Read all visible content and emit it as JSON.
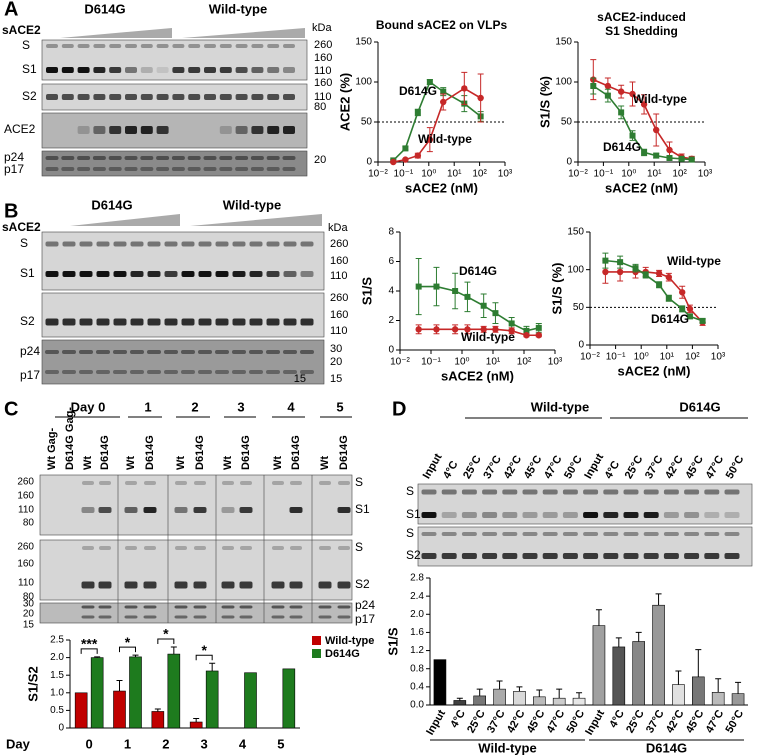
{
  "panel_labels": [
    "A",
    "B",
    "C",
    "D"
  ],
  "blot_A": {
    "groups": [
      "D614G",
      "Wild-type"
    ],
    "treatment": "sACE2",
    "bands": [
      "S",
      "S1",
      "S2",
      "ACE2",
      "p24",
      "p17"
    ],
    "kda_title": "kDa",
    "markers": [
      260,
      160,
      110,
      160,
      110,
      80,
      20
    ]
  },
  "blot_B": {
    "groups": [
      "D614G",
      "Wild-type"
    ],
    "treatment": "sACE2",
    "bands": [
      "S",
      "S1",
      "S2",
      "p24",
      "p17"
    ],
    "kda_title": "kDa",
    "markers": [
      260,
      160,
      110,
      260,
      160,
      110,
      30,
      20,
      15,
      15
    ]
  },
  "blot_C": {
    "days": [
      "Day 0",
      "1",
      "2",
      "3",
      "4",
      "5"
    ],
    "lanes": [
      "Wt Gag-",
      "D614G Gag-",
      "Wt",
      "D614G",
      "Wt",
      "D614G",
      "Wt",
      "D614G",
      "Wt",
      "D614G",
      "Wt",
      "D614G",
      "Wt",
      "D614G"
    ],
    "markers": [
      260,
      160,
      110,
      80,
      260,
      160,
      110,
      80,
      30,
      20,
      15
    ],
    "bands": [
      "S",
      "S1",
      "S",
      "S2",
      "p24",
      "p17"
    ]
  },
  "blot_D": {
    "groups": [
      "Wild-type",
      "D614G"
    ],
    "bands": [
      "S",
      "S1",
      "S",
      "S2"
    ]
  },
  "chart_data": [
    {
      "type": "line",
      "title": "Bound sACE2 on VLPs",
      "x_label": "sACE2 (nM)",
      "y_label": "ACE2 (%)",
      "xlim": [
        0.01,
        1000
      ],
      "xticks": [
        {
          "value": 0.01,
          "label": "10⁻²"
        },
        {
          "value": 0.1,
          "label": "10⁻¹"
        },
        {
          "value": 1,
          "label": "10⁰"
        },
        {
          "value": 10,
          "label": "10¹"
        },
        {
          "value": 100,
          "label": "10²"
        },
        {
          "value": 1000,
          "label": "10³"
        }
      ],
      "ylim": [
        0,
        150
      ],
      "yticks": [
        0,
        50,
        100,
        150
      ],
      "hline": 50,
      "series": [
        {
          "name": "D614G",
          "color": "#2e7d32",
          "marker": "square",
          "x": [
            0.04,
            0.12,
            0.37,
            1.1,
            3.7,
            25,
            110
          ],
          "values": [
            2,
            17,
            62,
            100,
            88,
            73,
            57
          ],
          "errors": [
            1,
            2,
            4,
            3,
            5,
            10,
            6
          ]
        },
        {
          "name": "Wild-type",
          "color": "#c62828",
          "marker": "circle",
          "x": [
            0.04,
            0.12,
            0.37,
            1.1,
            3.7,
            25,
            110
          ],
          "values": [
            0,
            3,
            8,
            28,
            75,
            92,
            80
          ],
          "errors": [
            1,
            1,
            3,
            15,
            10,
            20,
            30
          ]
        }
      ]
    },
    {
      "type": "line",
      "title": [
        "sACE2-induced",
        "S1 Shedding"
      ],
      "x_label": "sACE2 (nM)",
      "y_label": "S1/S (%)",
      "xlim": [
        0.01,
        1000
      ],
      "xticks": [
        {
          "value": 0.01,
          "label": "10⁻²"
        },
        {
          "value": 0.1,
          "label": "10⁻¹"
        },
        {
          "value": 1,
          "label": "10⁰"
        },
        {
          "value": 10,
          "label": "10¹"
        },
        {
          "value": 100,
          "label": "10²"
        },
        {
          "value": 1000,
          "label": "10³"
        }
      ],
      "ylim": [
        0,
        150
      ],
      "yticks": [
        0,
        50,
        100,
        150
      ],
      "hline": 50,
      "series": [
        {
          "name": "Wild-type",
          "color": "#c62828",
          "marker": "circle",
          "x": [
            0.04,
            0.15,
            0.5,
            1.4,
            4,
            12,
            40,
            120,
            300
          ],
          "values": [
            103,
            95,
            88,
            85,
            72,
            40,
            15,
            6,
            4
          ],
          "errors": [
            25,
            10,
            8,
            15,
            12,
            20,
            10,
            4,
            3
          ]
        },
        {
          "name": "D614G",
          "color": "#2e7d32",
          "marker": "square",
          "x": [
            0.04,
            0.15,
            0.5,
            1.4,
            4,
            12,
            40,
            120,
            300
          ],
          "values": [
            95,
            83,
            62,
            33,
            12,
            8,
            5,
            4,
            3
          ],
          "errors": [
            10,
            8,
            8,
            6,
            4,
            3,
            2,
            2,
            2
          ]
        }
      ]
    },
    {
      "type": "line",
      "x_label": "sACE2 (nM)",
      "y_label": "S1/S",
      "xlim": [
        0.01,
        1000
      ],
      "xticks": [
        {
          "value": 0.01,
          "label": "10⁻²"
        },
        {
          "value": 0.1,
          "label": "10⁻¹"
        },
        {
          "value": 1,
          "label": "10⁰"
        },
        {
          "value": 10,
          "label": "10¹"
        },
        {
          "value": 100,
          "label": "10²"
        },
        {
          "value": 1000,
          "label": "10³"
        }
      ],
      "ylim": [
        0,
        8
      ],
      "yticks": [
        0,
        2,
        4,
        6,
        8
      ],
      "series": [
        {
          "name": "D614G",
          "color": "#2e7d32",
          "marker": "square",
          "x": [
            0.04,
            0.15,
            0.6,
            1.5,
            5,
            12,
            40,
            120,
            300
          ],
          "values": [
            4.3,
            4.3,
            4.0,
            3.6,
            3.0,
            2.5,
            1.8,
            1.3,
            1.5
          ],
          "errors": [
            1.9,
            1.3,
            1.2,
            1.0,
            0.8,
            0.7,
            0.4,
            0.3,
            0.3
          ]
        },
        {
          "name": "Wild-type",
          "color": "#c62828",
          "marker": "circle",
          "x": [
            0.04,
            0.15,
            0.6,
            1.5,
            5,
            12,
            40,
            120,
            300
          ],
          "values": [
            1.4,
            1.4,
            1.4,
            1.4,
            1.4,
            1.4,
            1.3,
            1.0,
            1.0
          ],
          "errors": [
            0.3,
            0.3,
            0.3,
            0.3,
            0.2,
            0.2,
            0.2,
            0.1,
            0.1
          ]
        }
      ]
    },
    {
      "type": "line",
      "x_label": "sACE2 (nM)",
      "y_label": "S1/S (%)",
      "xlim": [
        0.01,
        1000
      ],
      "xticks": [
        {
          "value": 0.01,
          "label": "10⁻²"
        },
        {
          "value": 0.1,
          "label": "10⁻¹"
        },
        {
          "value": 1,
          "label": "10⁰"
        },
        {
          "value": 10,
          "label": "10¹"
        },
        {
          "value": 100,
          "label": "10²"
        },
        {
          "value": 1000,
          "label": "10³"
        }
      ],
      "ylim": [
        0,
        150
      ],
      "yticks": [
        0,
        50,
        100,
        150
      ],
      "hline": 50,
      "series": [
        {
          "name": "Wild-type",
          "color": "#c62828",
          "marker": "circle",
          "x": [
            0.04,
            0.15,
            0.6,
            1.5,
            5,
            12,
            40,
            80,
            250
          ],
          "values": [
            97,
            97,
            97,
            97,
            95,
            90,
            70,
            48,
            30
          ],
          "errors": [
            15,
            12,
            8,
            6,
            4,
            5,
            8,
            5,
            4
          ]
        },
        {
          "name": "D614G",
          "color": "#2e7d32",
          "marker": "square",
          "x": [
            0.04,
            0.15,
            0.6,
            1.5,
            5,
            12,
            40,
            80,
            250
          ],
          "values": [
            112,
            110,
            102,
            93,
            80,
            62,
            48,
            38,
            32
          ],
          "errors": [
            10,
            8,
            5,
            4,
            4,
            4,
            4,
            3,
            3
          ]
        }
      ]
    },
    {
      "type": "bar",
      "x_label": "Day",
      "y_label": "S1/S2",
      "categories": [
        "0",
        "1",
        "2",
        "3",
        "4",
        "5"
      ],
      "ylim": [
        0,
        2.5
      ],
      "yticks": [
        0,
        0.5,
        {
          "value": 1,
          "label": "1.0"
        },
        1.5,
        {
          "value": 2,
          "label": "2.0"
        },
        2.5
      ],
      "significance": [
        "***",
        "*",
        "*",
        "*",
        null,
        null
      ],
      "series": [
        {
          "name": "Wild-type",
          "color": "#c00000",
          "values": [
            1.0,
            1.05,
            0.47,
            0.17,
            null,
            null
          ],
          "errors": [
            null,
            0.3,
            0.07,
            0.1,
            null,
            null
          ]
        },
        {
          "name": "D614G",
          "color": "#1e7b1e",
          "values": [
            2.0,
            2.02,
            2.1,
            1.62,
            1.57,
            1.68
          ],
          "errors": [
            0.02,
            0.05,
            0.2,
            0.22,
            null,
            null
          ]
        }
      ]
    },
    {
      "type": "bar",
      "y_label": "S1/S",
      "groups": [
        "Wild-type",
        "D614G"
      ],
      "categories": [
        "Input",
        "4°C",
        "25°C",
        "37°C",
        "42°C",
        "45°C",
        "47°C",
        "50°C",
        "Input",
        "4°C",
        "25°C",
        "37°C",
        "42°C",
        "45°C",
        "47°C",
        "50°C"
      ],
      "ylim": [
        0,
        2.8
      ],
      "yticks": [
        {
          "value": 0,
          "label": "0.0"
        },
        0.4,
        0.8,
        1.2,
        1.6,
        {
          "value": 2,
          "label": "2.0"
        },
        2.4,
        2.8
      ],
      "values": [
        1.0,
        0.1,
        0.2,
        0.35,
        0.3,
        0.18,
        0.15,
        0.15,
        1.75,
        1.28,
        1.4,
        2.2,
        0.45,
        0.62,
        0.28,
        0.25
      ],
      "errors": [
        null,
        0.05,
        0.15,
        0.18,
        0.1,
        0.15,
        0.2,
        0.12,
        0.35,
        0.2,
        0.2,
        0.25,
        0.3,
        0.6,
        0.3,
        0.25
      ],
      "colors": [
        "#000000",
        "#404040",
        "#777777",
        "#aaaaaa",
        "#d9d9d9",
        "#bbbbbb",
        "#cccccc",
        "#e6e6e6",
        "#a0a0a0",
        "#555555",
        "#888888",
        "#999999",
        "#e0e0e0",
        "#777777",
        "#bbbbbb",
        "#999999"
      ]
    }
  ]
}
